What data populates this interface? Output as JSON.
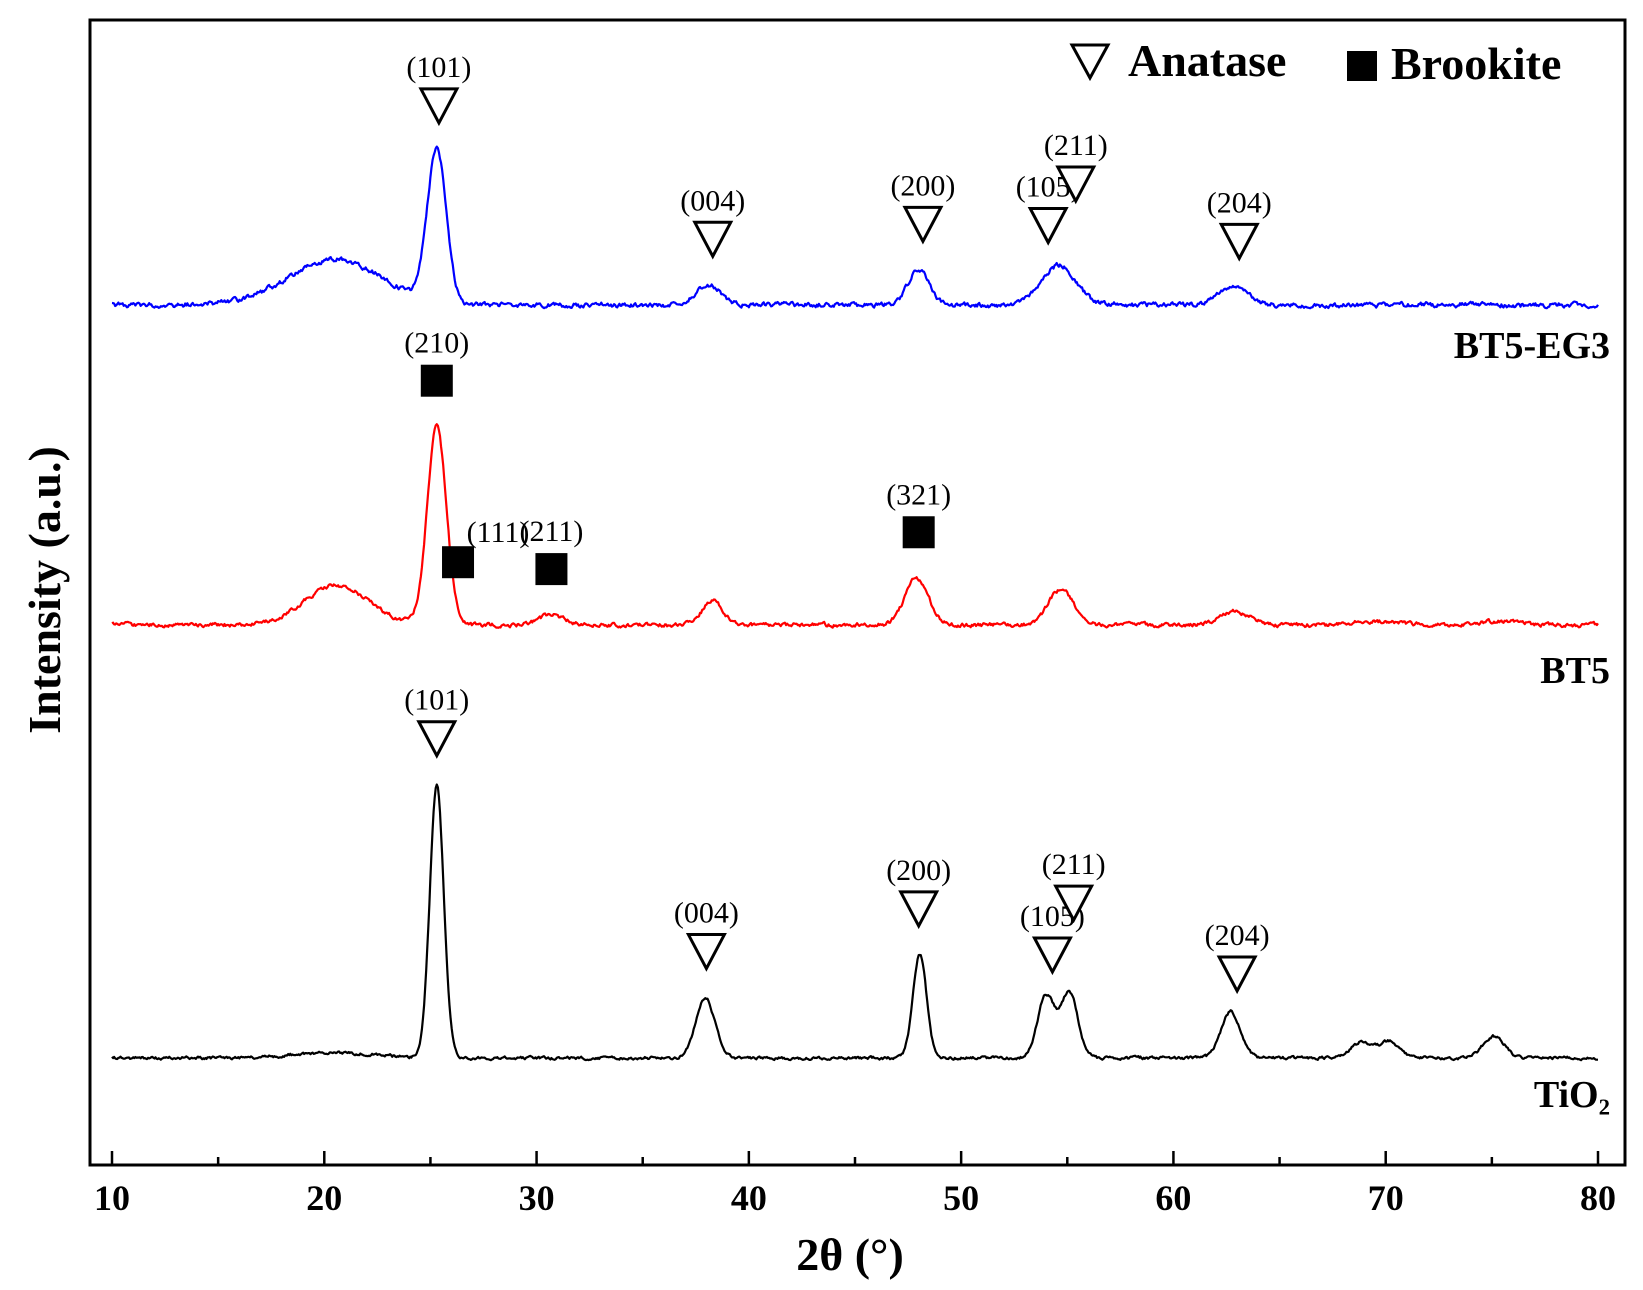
{
  "chart_data": {
    "type": "line",
    "xlabel": "2θ (°)",
    "ylabel": "Intensity (a.u.)",
    "xlim": [
      10,
      80
    ],
    "xticks": [
      10,
      20,
      30,
      40,
      50,
      60,
      70,
      80
    ],
    "xtick_labels": [
      "10",
      "20",
      "30",
      "40",
      "50",
      "60",
      "70",
      "80"
    ],
    "legend": {
      "placement": "top-right",
      "items": [
        {
          "marker": "open-triangle-down",
          "label": "Anatase"
        },
        {
          "marker": "filled-square",
          "label": "Brookite"
        }
      ]
    },
    "series": [
      {
        "name": "BT5-EG3",
        "name_display": "BT5-EG3",
        "color": "#0000ff",
        "peaks": [
          {
            "x": 20.5,
            "height": 0.3,
            "width": 2.2
          },
          {
            "x": 25.3,
            "height": 1.0,
            "width": 0.45
          },
          {
            "x": 38.1,
            "height": 0.13,
            "width": 0.6
          },
          {
            "x": 48.0,
            "height": 0.24,
            "width": 0.5
          },
          {
            "x": 54.6,
            "height": 0.26,
            "width": 0.8
          },
          {
            "x": 62.8,
            "height": 0.12,
            "width": 0.7
          }
        ],
        "annotations": [
          {
            "marker": "anatase",
            "x": 25.4,
            "label": "(101)"
          },
          {
            "marker": "anatase",
            "x": 38.3,
            "label": "(004)"
          },
          {
            "marker": "anatase",
            "x": 48.2,
            "label": "(200)"
          },
          {
            "marker": "anatase",
            "x": 54.1,
            "label": "(105)"
          },
          {
            "marker": "anatase",
            "x": 55.4,
            "label": "(211)"
          },
          {
            "marker": "anatase",
            "x": 63.1,
            "label": "(204)"
          }
        ]
      },
      {
        "name": "BT5",
        "name_display": "BT5",
        "color": "#ff0000",
        "peaks": [
          {
            "x": 20.6,
            "height": 0.2,
            "width": 1.5
          },
          {
            "x": 25.3,
            "height": 1.0,
            "width": 0.45
          },
          {
            "x": 30.7,
            "height": 0.05,
            "width": 0.6
          },
          {
            "x": 38.3,
            "height": 0.12,
            "width": 0.5
          },
          {
            "x": 47.9,
            "height": 0.24,
            "width": 0.55
          },
          {
            "x": 54.7,
            "height": 0.18,
            "width": 0.6
          },
          {
            "x": 62.9,
            "height": 0.07,
            "width": 0.7
          },
          {
            "x": 69.5,
            "height": 0.02,
            "width": 1.0
          },
          {
            "x": 75.4,
            "height": 0.02,
            "width": 1.0
          }
        ],
        "annotations": [
          {
            "marker": "brookite",
            "x": 25.3,
            "label": "(210)"
          },
          {
            "marker": "brookite",
            "x": 26.3,
            "label": "(111)"
          },
          {
            "marker": "brookite",
            "x": 30.7,
            "label": "(211)"
          },
          {
            "marker": "brookite",
            "x": 48.0,
            "label": "(321)"
          }
        ]
      },
      {
        "name": "TiO2",
        "name_display": "TiO₂",
        "color": "#000000",
        "peaks": [
          {
            "x": 20.5,
            "height": 0.02,
            "width": 2.0
          },
          {
            "x": 25.3,
            "height": 1.0,
            "width": 0.33
          },
          {
            "x": 37.95,
            "height": 0.22,
            "width": 0.45
          },
          {
            "x": 48.05,
            "height": 0.38,
            "width": 0.32
          },
          {
            "x": 54.0,
            "height": 0.23,
            "width": 0.4
          },
          {
            "x": 55.1,
            "height": 0.24,
            "width": 0.4
          },
          {
            "x": 62.7,
            "height": 0.17,
            "width": 0.45
          },
          {
            "x": 68.9,
            "height": 0.06,
            "width": 0.5
          },
          {
            "x": 70.2,
            "height": 0.06,
            "width": 0.45
          },
          {
            "x": 75.1,
            "height": 0.08,
            "width": 0.5
          }
        ],
        "annotations": [
          {
            "marker": "anatase",
            "x": 25.3,
            "label": "(101)"
          },
          {
            "marker": "anatase",
            "x": 38.0,
            "label": "(004)"
          },
          {
            "marker": "anatase",
            "x": 48.0,
            "label": "(200)"
          },
          {
            "marker": "anatase",
            "x": 54.3,
            "label": "(105)"
          },
          {
            "marker": "anatase",
            "x": 55.3,
            "label": "(211)"
          },
          {
            "marker": "anatase",
            "x": 63.0,
            "label": "(204)"
          }
        ]
      }
    ]
  }
}
